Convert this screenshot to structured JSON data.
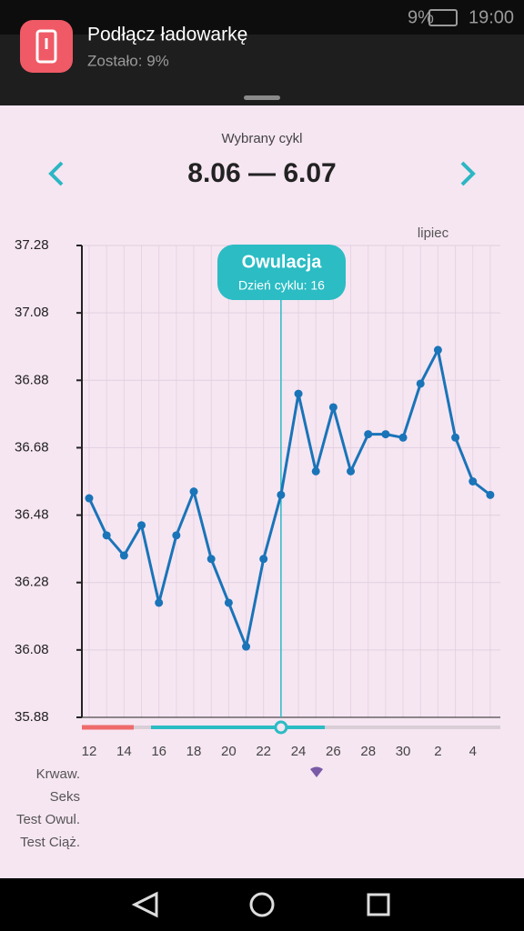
{
  "status_bar": {
    "battery": "9%",
    "time": "19:00"
  },
  "notification": {
    "title": "Podłącz ładowarkę",
    "text": "Zostało: 9%"
  },
  "cycle": {
    "label": "Wybrany cykl",
    "range": "8.06 — 6.07"
  },
  "chart_data": {
    "type": "line",
    "categories": [
      "12",
      null,
      "14",
      null,
      "16",
      null,
      "18",
      null,
      "20",
      null,
      "22",
      null,
      "24",
      null,
      "26",
      null,
      "28",
      null,
      "30",
      null,
      "2",
      null,
      "4",
      null
    ],
    "values": [
      36.53,
      36.42,
      36.36,
      36.45,
      36.22,
      36.42,
      36.55,
      36.35,
      36.22,
      36.09,
      36.35,
      36.54,
      36.84,
      36.61,
      36.8,
      36.61,
      36.72,
      36.72,
      36.71,
      36.87,
      36.97,
      36.71,
      36.58,
      36.54
    ],
    "color": "#1a74b8",
    "ylim": [
      35.88,
      37.28
    ],
    "yticks": [
      35.88,
      36.08,
      36.28,
      36.48,
      36.68,
      36.88,
      37.08,
      37.28
    ],
    "grid": true,
    "month_label": "lipiec",
    "annotation": {
      "title": "Owulacja",
      "text": "Dzień cyklu: 16"
    },
    "row_labels": [
      "Krwaw.",
      "Seks",
      "Test Owul.",
      "Test Ciąż."
    ]
  }
}
